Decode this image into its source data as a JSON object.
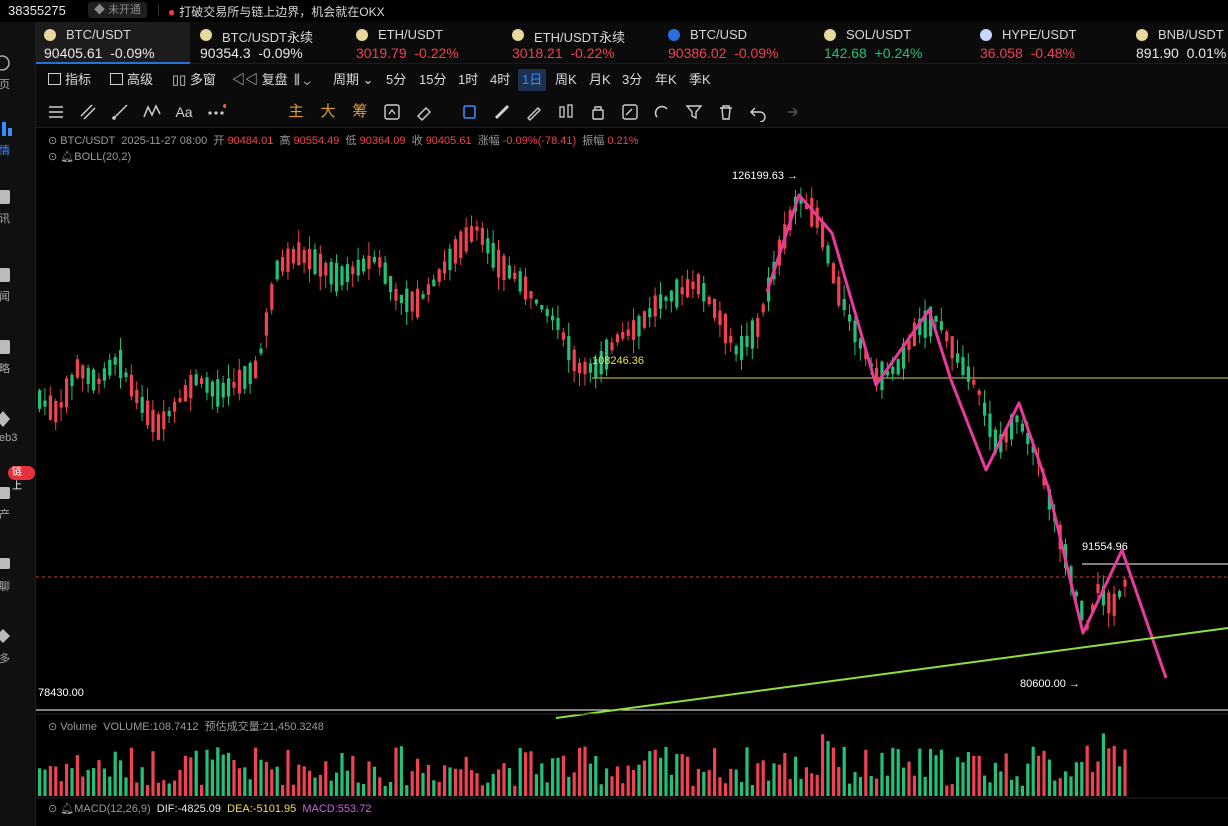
{
  "topbar": {
    "account_id": "38355275",
    "status_badge": "未开通",
    "announcement": "打破交易所与链上边界，机会就在OKX"
  },
  "sidebar": {
    "items": [
      {
        "label": "页",
        "icon": "home-icon"
      },
      {
        "label": "情",
        "icon": "market-icon",
        "active": true
      },
      {
        "label": "讯",
        "icon": "news-icon"
      },
      {
        "label": "闻",
        "icon": "newsfeed-icon"
      },
      {
        "label": "略",
        "icon": "strategy-icon"
      },
      {
        "label": "eb3",
        "icon": "web3-icon"
      },
      {
        "label": "产",
        "icon": "assets-icon"
      },
      {
        "label": "聊",
        "icon": "chat-icon"
      },
      {
        "label": "多",
        "icon": "more-icon"
      }
    ],
    "tag": "链上"
  },
  "tickers": [
    {
      "name": "BTC/USDT",
      "price": "90405.61",
      "change": "-0.09%",
      "icon_color": "#e8d8a0",
      "active": true,
      "price_class": "white"
    },
    {
      "name": "BTC/USDT永续",
      "price": "90354.3",
      "change": "-0.09%",
      "icon_color": "#e8d8a0",
      "price_class": "white"
    },
    {
      "name": "ETH/USDT",
      "price": "3019.79",
      "change": "-0.22%",
      "icon_color": "#e8d8a0",
      "price_class": "down"
    },
    {
      "name": "ETH/USDT永续",
      "price": "3018.21",
      "change": "-0.22%",
      "icon_color": "#e8d8a0",
      "price_class": "down"
    },
    {
      "name": "BTC/USD",
      "price": "90386.02",
      "change": "-0.09%",
      "icon_color": "#2b6fdf",
      "price_class": "down"
    },
    {
      "name": "SOL/USDT",
      "price": "142.68",
      "change": "+0.24%",
      "icon_color": "#e8d8a0",
      "price_class": "up"
    },
    {
      "name": "HYPE/USDT",
      "price": "36.058",
      "change": "-0.48%",
      "icon_color": "#c9d8ff",
      "price_class": "down"
    },
    {
      "name": "BNB/USDT",
      "price": "891.90",
      "change": "0.01%",
      "icon_color": "#e8d8a0",
      "price_class": "white"
    }
  ],
  "toolbar": {
    "indicators": "指标",
    "advanced": "高级",
    "multi_window": "多窗",
    "replay": "复盘",
    "period": "周期",
    "intervals": [
      "5分",
      "15分",
      "1时",
      "4时",
      "1日",
      "周K",
      "月K",
      "3分",
      "年K",
      "季K"
    ],
    "active_interval": "1日"
  },
  "drawing_tools": {
    "main": "主",
    "big": "大",
    "chip": "筹",
    "text_tool": "Aa"
  },
  "chart": {
    "symbol": "BTC/USDT",
    "datetime": "2025-11-27 08:00",
    "open_label": "开",
    "open": "90484.01",
    "high_label": "高",
    "high": "90554.49",
    "low_label": "低",
    "low": "90364.09",
    "close_label": "收",
    "close": "90405.61",
    "change_label": "涨幅",
    "change": "-0.09%(-78.41)",
    "amplitude_label": "振幅",
    "amplitude": "0.21%",
    "indicator": "BOLL(20,2)",
    "labels": {
      "high_marker": "126199.63",
      "support_level": "108246.36",
      "recent_high": "91554.96",
      "low_marker": "80600.00",
      "axis_low": "78430.00"
    },
    "volume": {
      "title": "Volume",
      "value": "VOLUME:108.7412",
      "estimate": "预估成交量:21,450.3248"
    },
    "macd": {
      "title": "MACD(12,26,9)",
      "dif": "DIF:-4825.09",
      "dea": "DEA:-5101.95",
      "macd": "MACD:553.72"
    },
    "colors": {
      "up": "#22c17a",
      "down": "#f0424f",
      "zigzag": "#e83a9a",
      "trendline": "#8fe03a",
      "support": "#e0d84a"
    }
  },
  "chart_data": {
    "type": "candlestick",
    "title": "BTC/USDT",
    "interval": "1日",
    "price_range": [
      78430.0,
      126199.63
    ],
    "annotations": [
      {
        "label": "126199.63",
        "kind": "high"
      },
      {
        "label": "108246.36",
        "kind": "support"
      },
      {
        "label": "91554.96",
        "kind": "recent_high"
      },
      {
        "label": "80600.00",
        "kind": "low"
      },
      {
        "label": "78430.00",
        "kind": "axis_low"
      }
    ],
    "last_candle": {
      "open": 90484.01,
      "high": 90554.49,
      "low": 90364.09,
      "close": 90405.61,
      "change": -78.41,
      "change_pct": -0.09,
      "amplitude_pct": 0.21
    },
    "macd": {
      "dif": -4825.09,
      "dea": -5101.95,
      "macd": 553.72
    },
    "volume": {
      "last": 108.7412,
      "estimated": 21450.3248
    }
  }
}
